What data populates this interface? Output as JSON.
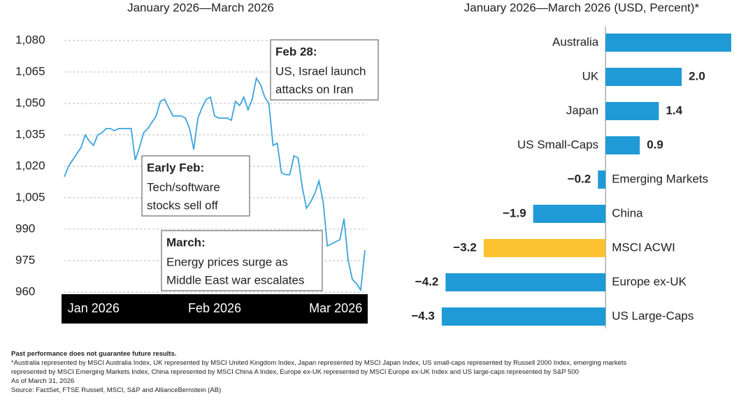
{
  "chart_data": [
    {
      "type": "line",
      "title": "January 2026—March 2026",
      "categories": [
        null,
        null,
        null,
        null,
        null,
        null,
        null,
        "Jan 2026",
        null,
        null,
        null,
        null,
        null,
        null,
        null,
        null,
        null,
        null,
        null,
        null,
        null,
        null,
        null,
        null,
        null,
        null,
        null,
        null,
        null,
        null,
        null,
        null,
        null,
        null,
        null,
        null,
        "Feb 2026",
        null,
        null,
        null,
        null,
        null,
        null,
        null,
        null,
        null,
        null,
        null,
        null,
        null,
        null,
        null,
        null,
        null,
        null,
        null,
        null,
        null,
        null,
        null,
        null,
        null,
        null,
        null,
        null,
        "Mar 2026",
        null,
        null,
        null,
        null,
        null,
        null,
        null
      ],
      "values": [
        1015,
        1020,
        1023,
        1026,
        1029,
        1035,
        1032,
        1030,
        1035,
        1036,
        1038,
        1038,
        1037,
        1038,
        1038,
        1038,
        1038,
        1023,
        1029,
        1036,
        1038,
        1041,
        1044,
        1051,
        1052,
        1048,
        1044,
        1044,
        1044,
        1043,
        1038,
        1028,
        1043,
        1048,
        1052,
        1053,
        1044,
        1043,
        1043,
        1043,
        1042,
        1051,
        1049,
        1053,
        1047,
        1052,
        1062,
        1059,
        1053,
        1050,
        1030,
        1031,
        1017,
        1016,
        1016,
        1025,
        1024,
        1010,
        1000,
        1003,
        1007,
        1013,
        1003,
        982,
        983,
        984,
        985,
        995,
        975,
        966,
        964,
        961,
        980
      ],
      "color": "#3aa4dc",
      "ylim": [
        960,
        1080
      ],
      "yticks": [
        960,
        975,
        990,
        {
          "value": 1005,
          "label": "1,005"
        },
        {
          "value": 1020,
          "label": "1,020"
        },
        {
          "value": 1035,
          "label": "1,035"
        },
        {
          "value": 1050,
          "label": "1,050"
        },
        {
          "value": 1065,
          "label": "1,065"
        },
        {
          "value": 1080,
          "label": "1,080"
        }
      ],
      "grid": true,
      "annotations": [
        {
          "title": "Feb 28:",
          "lines": [
            "US, Israel launch",
            "attacks on Iran"
          ]
        },
        {
          "title": "Early Feb:",
          "lines": [
            "Tech/software",
            "stocks sell off"
          ]
        },
        {
          "title": "March:",
          "lines": [
            "Energy prices surge as",
            "Middle East war escalates"
          ]
        }
      ]
    },
    {
      "type": "hbar",
      "title": "January 2026—March 2026 (USD, Percent)*",
      "categories": [
        "Australia",
        "UK",
        "Japan",
        "US Small-Caps",
        "Emerging Markets",
        "China",
        "MSCI ACWI",
        "Europe ex-UK",
        "US Large-Caps"
      ],
      "values": [
        3.3,
        2.0,
        1.4,
        0.9,
        -0.2,
        -1.9,
        -3.2,
        -4.2,
        -4.3
      ],
      "value_labels": [
        null,
        "2.0",
        "1.4",
        "0.9",
        "−0.2",
        "−1.9",
        "−3.2",
        "−4.2",
        "−4.3"
      ],
      "colors": [
        "#1f9ad6",
        "#1f9ad6",
        "#1f9ad6",
        "#1f9ad6",
        "#1f9ad6",
        "#1f9ad6",
        "#fcc12e",
        "#1f9ad6",
        "#1f9ad6"
      ],
      "xlim": [
        -4.5,
        3.3
      ]
    }
  ],
  "notes": {
    "bold": "Past performance does not guarantee future results.",
    "lines": [
      "*Australia represented by MSCI Australia Index, UK represented by MSCI United Kingdom Index, Japan represented by MSCI Japan Index, US small-caps represented by Russell 2000 Index, emerging markets",
      "represented by MSCI Emerging Markets Index, China represented by MSCI China A Index, Europe ex-UK represented by MSCI Europe ex-UK Index and US large-caps represented by S&P 500",
      "As of March 31, 2026",
      "Source: FactSet, FTSE Russell, MSCI, S&P and AllianceBernstein (AB)"
    ]
  }
}
